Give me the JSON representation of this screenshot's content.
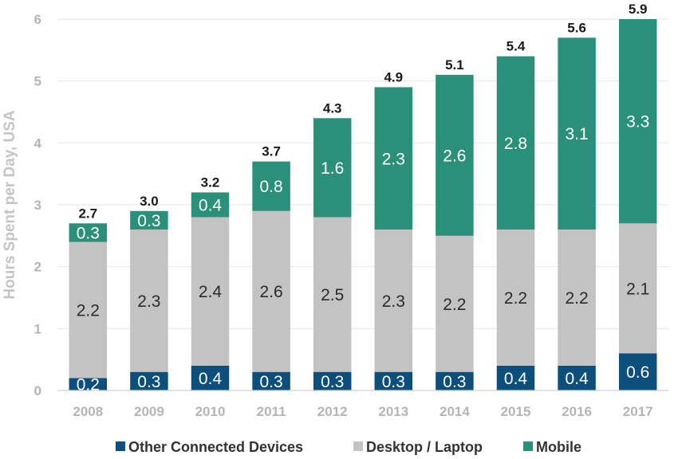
{
  "chart_data": {
    "type": "bar",
    "stacked": true,
    "ylabel": "Hours Spent per Day, USA",
    "ylim": [
      0,
      6
    ],
    "yticks": [
      "0",
      "1",
      "2",
      "3",
      "4",
      "5",
      "6"
    ],
    "grid": true,
    "legend_position": "bottom",
    "categories": [
      "2008",
      "2009",
      "2010",
      "2011",
      "2012",
      "2013",
      "2014",
      "2015",
      "2016",
      "2017"
    ],
    "totals": [
      "2.7",
      "3.0",
      "3.2",
      "3.7",
      "4.3",
      "4.9",
      "5.1",
      "5.4",
      "5.6",
      "5.9"
    ],
    "series": [
      {
        "name": "Other Connected Devices",
        "color": "#0d4f7c",
        "label_color": "#ffffff",
        "values": [
          0.2,
          0.3,
          0.4,
          0.3,
          0.3,
          0.3,
          0.3,
          0.4,
          0.4,
          0.6
        ],
        "labels": [
          "0.2",
          "0.3",
          "0.4",
          "0.3",
          "0.3",
          "0.3",
          "0.3",
          "0.4",
          "0.4",
          "0.6"
        ]
      },
      {
        "name": "Desktop / Laptop",
        "color": "#c3c3c3",
        "label_color": "#2b2b2b",
        "values": [
          2.2,
          2.3,
          2.4,
          2.6,
          2.5,
          2.3,
          2.2,
          2.2,
          2.2,
          2.1
        ],
        "labels": [
          "2.2",
          "2.3",
          "2.4",
          "2.6",
          "2.5",
          "2.3",
          "2.2",
          "2.2",
          "2.2",
          "2.1"
        ]
      },
      {
        "name": "Mobile",
        "color": "#2a9079",
        "label_color": "#ffffff",
        "values": [
          0.3,
          0.3,
          0.4,
          0.8,
          1.6,
          2.3,
          2.6,
          2.8,
          3.1,
          3.3
        ],
        "labels": [
          "0.3",
          "0.3",
          "0.4",
          "0.8",
          "1.6",
          "2.3",
          "2.6",
          "2.8",
          "3.1",
          "3.3"
        ]
      }
    ]
  }
}
